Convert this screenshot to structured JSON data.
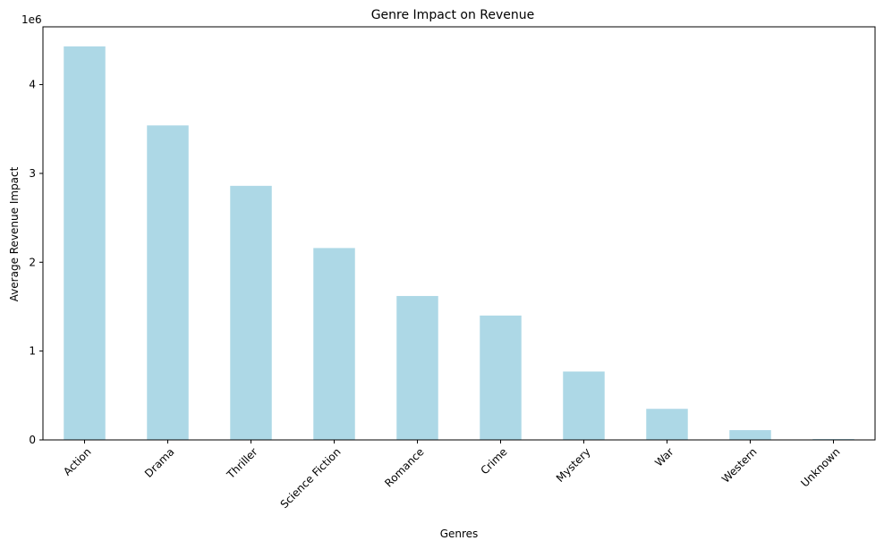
{
  "chart_data": {
    "type": "bar",
    "title": "Genre Impact on Revenue",
    "xlabel": "Genres",
    "ylabel": "Average Revenue Impact",
    "offset_label": "1e6",
    "categories": [
      "Action",
      "Drama",
      "Thriller",
      "Science Fiction",
      "Romance",
      "Crime",
      "Mystery",
      "War",
      "Western",
      "Unknown"
    ],
    "values": [
      4430000,
      3540000,
      2860000,
      2160000,
      1620000,
      1400000,
      770000,
      350000,
      110000,
      10000
    ],
    "yticks": [
      0,
      1000000,
      2000000,
      3000000,
      4000000
    ],
    "ytick_labels": [
      "0",
      "1",
      "2",
      "3",
      "4"
    ],
    "ylim": [
      0,
      4650000
    ],
    "bar_color": "#add8e6",
    "grid": false,
    "legend": "none"
  }
}
